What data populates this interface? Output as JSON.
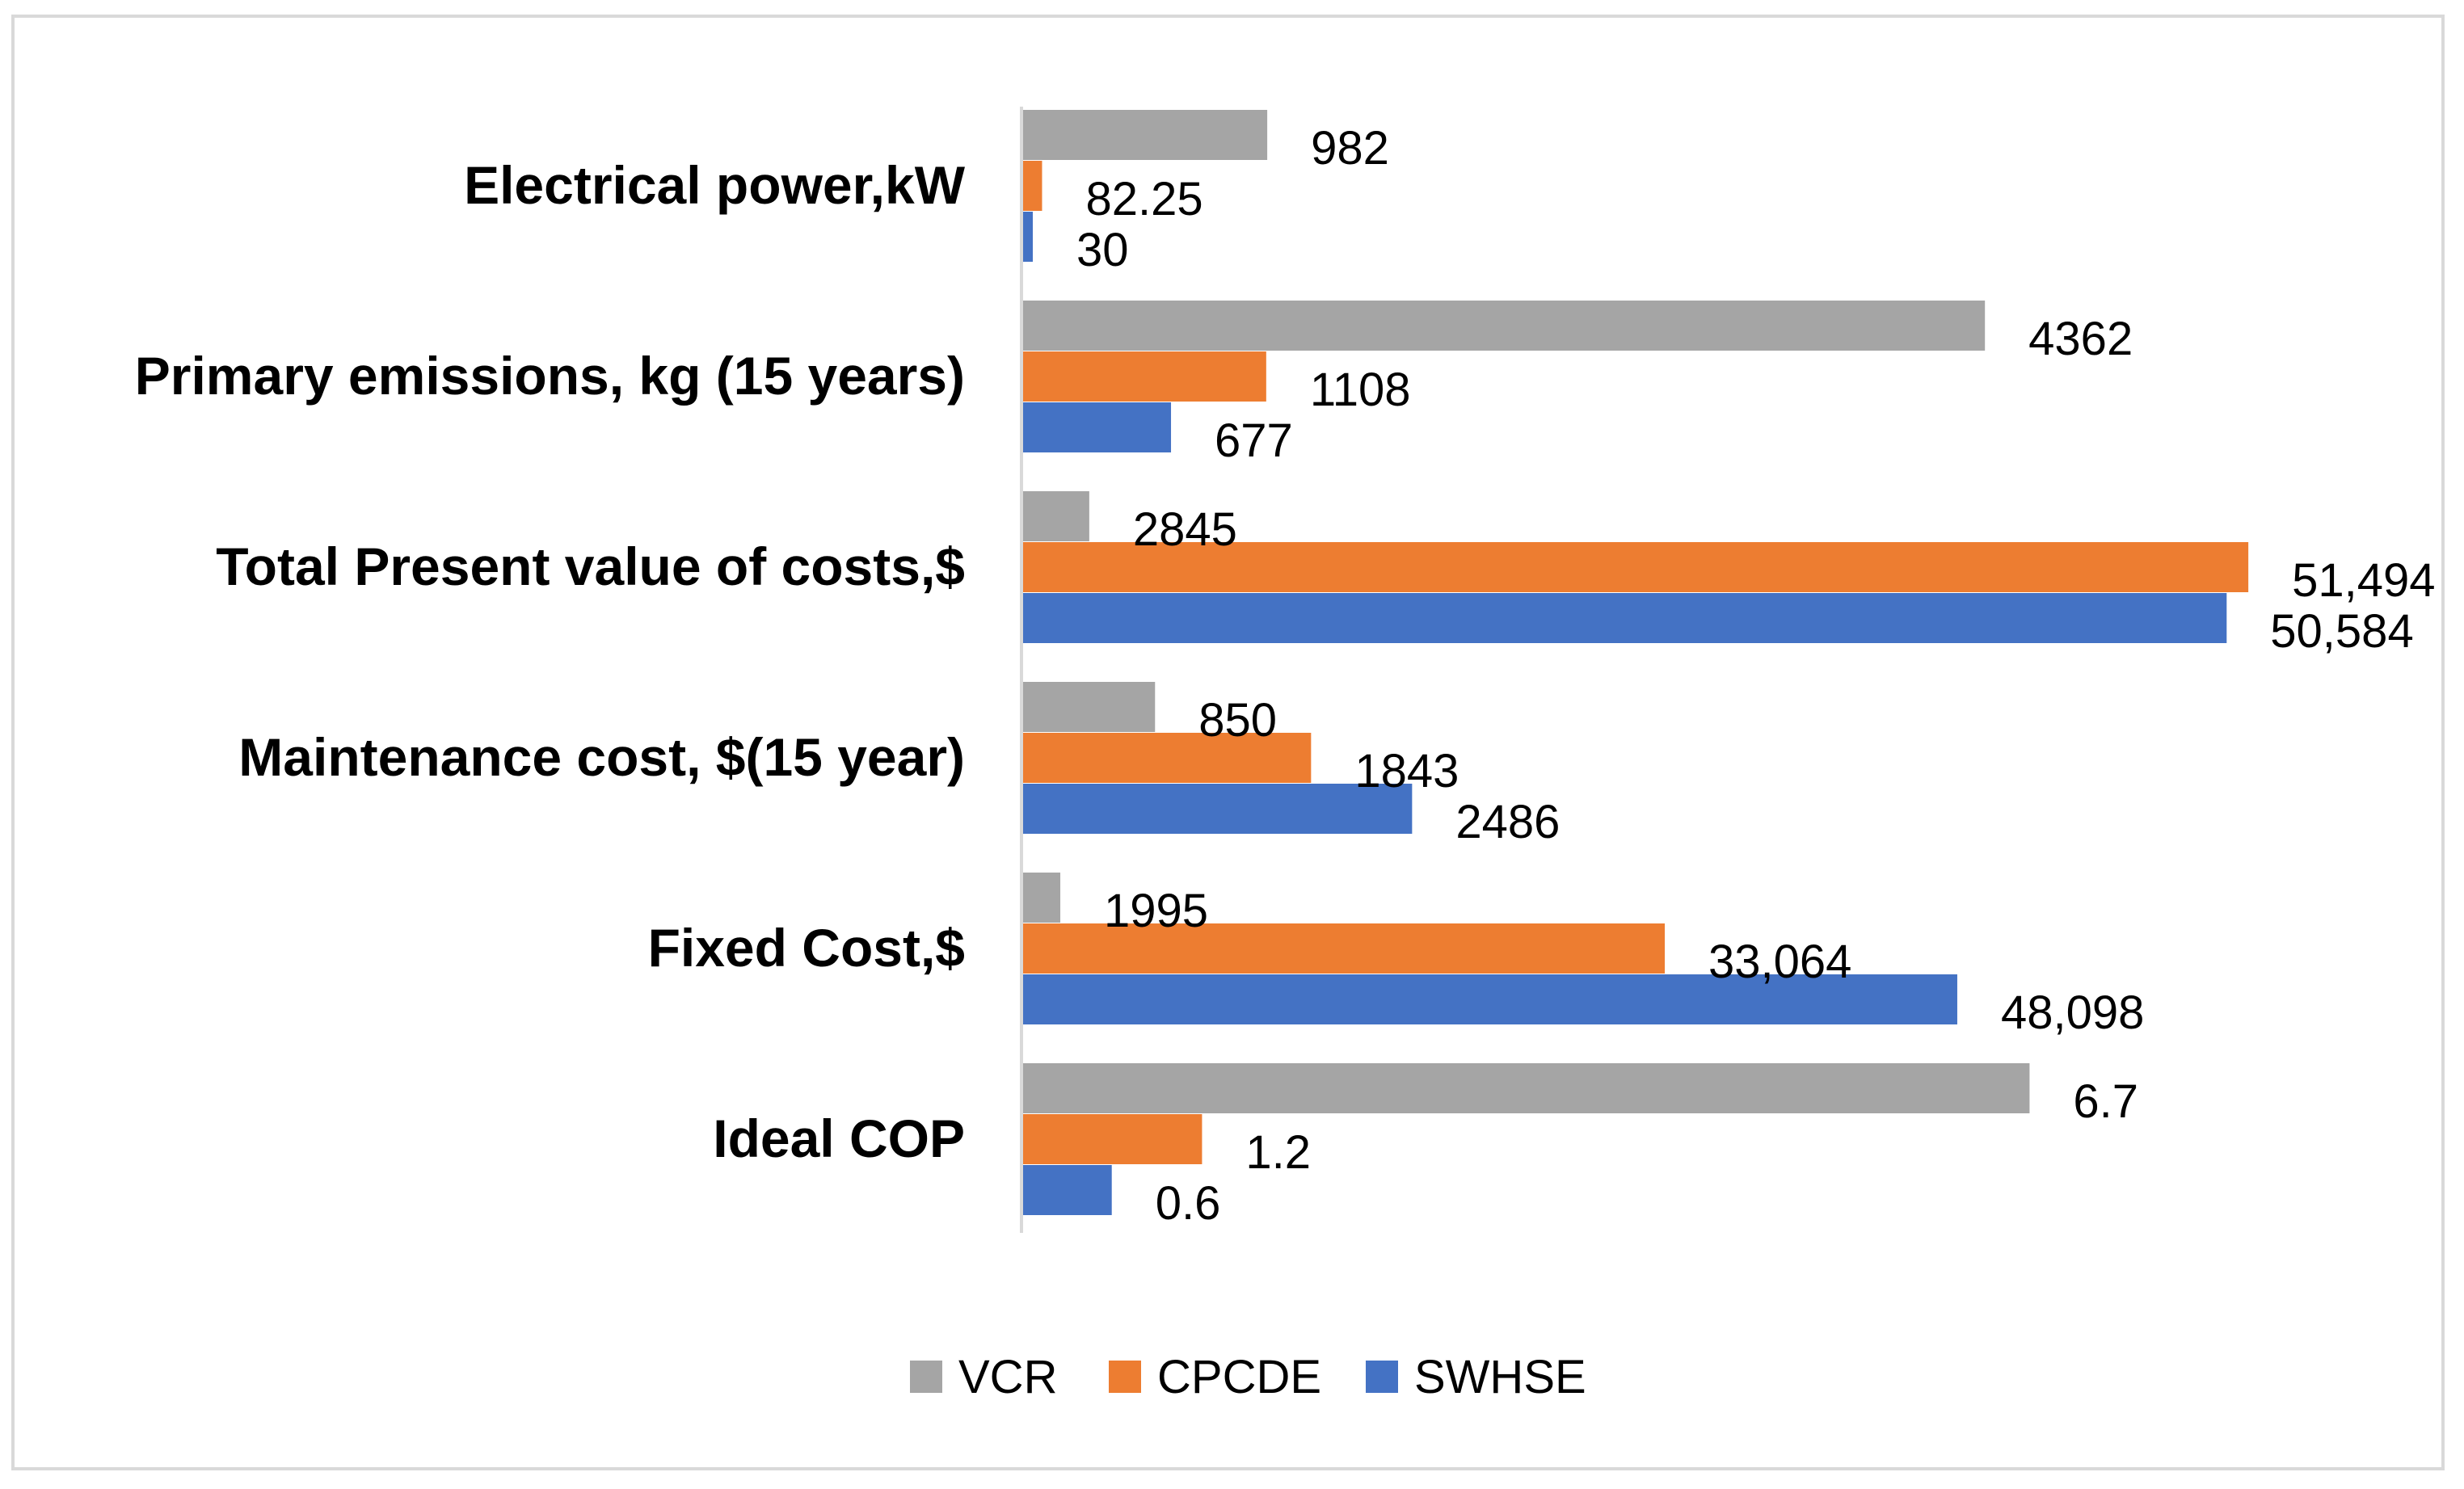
{
  "chart_data": {
    "type": "bar",
    "orientation": "horizontal",
    "title": "",
    "xlabel": "",
    "ylabel": "",
    "grid": false,
    "legend_position": "bottom",
    "categories": [
      "Electrical power,kW",
      "Primary emissions, kg (15 years)",
      "Total Present value of costs,$",
      "Maintenance cost, $(15 year)",
      "Fixed Cost,$",
      "Ideal COP"
    ],
    "series": [
      {
        "name": "VCR",
        "color": "#a5a5a5",
        "values": [
          982,
          4362,
          2845,
          850,
          1995,
          6.7
        ],
        "labels": [
          "982",
          "4362",
          "2845",
          "850",
          "1995",
          "6.7"
        ]
      },
      {
        "name": "CPCDE",
        "color": "#ed7d31",
        "values": [
          82.25,
          1108,
          51494,
          1843,
          33064,
          1.2
        ],
        "labels": [
          "82.25",
          "1108",
          "51,494",
          "1843",
          "33,064",
          "1.2"
        ]
      },
      {
        "name": "SWHSE",
        "color": "#4472c4",
        "values": [
          30,
          677,
          50584,
          2486,
          48098,
          0.6
        ],
        "labels": [
          "30",
          "677",
          "50,584",
          "2486",
          "48,098",
          "0.6"
        ]
      }
    ],
    "note": "Bar lengths are drawn per-category (values not on a common scale); each category's bars are sized relative to its own labelled values as in the original figure."
  }
}
